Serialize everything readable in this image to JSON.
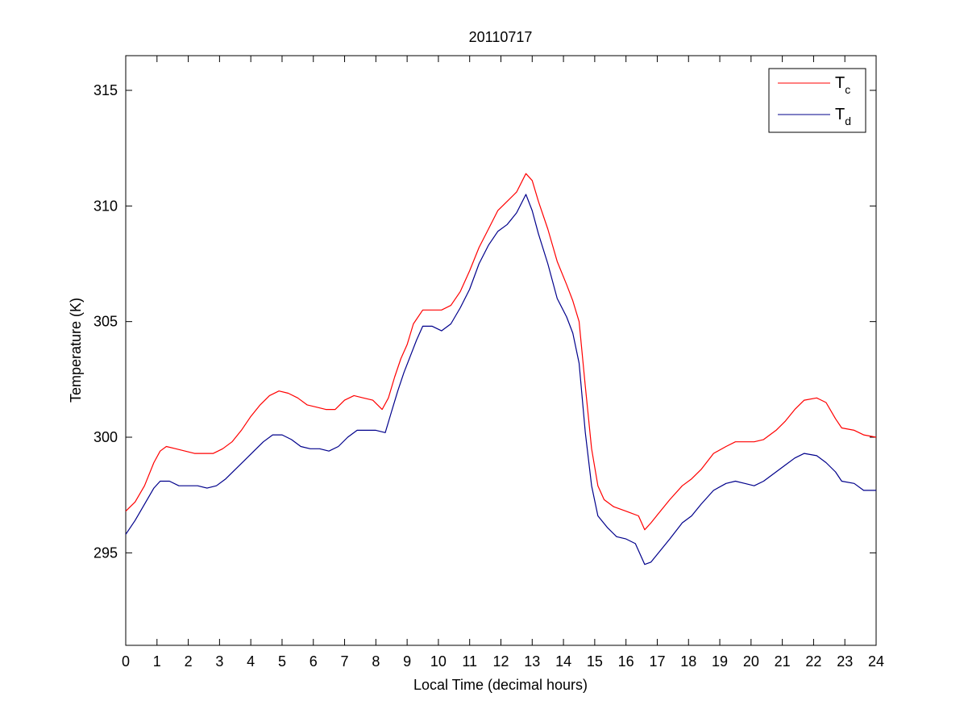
{
  "chart_data": {
    "type": "line",
    "title": "20110717",
    "xlabel": "Local Time (decimal hours)",
    "ylabel": "Temperature (K)",
    "xlim": [
      0,
      24
    ],
    "ylim": [
      291,
      316.5
    ],
    "xticks": [
      0,
      1,
      2,
      3,
      4,
      5,
      6,
      7,
      8,
      9,
      10,
      11,
      12,
      13,
      14,
      15,
      16,
      17,
      18,
      19,
      20,
      21,
      22,
      23,
      24
    ],
    "yticks": [
      295,
      300,
      305,
      310,
      315
    ],
    "grid": false,
    "legend_position": "top-right",
    "series": [
      {
        "name": "T",
        "subscript": "c",
        "color": "#ff0000",
        "points": [
          [
            0.0,
            296.8
          ],
          [
            0.3,
            297.2
          ],
          [
            0.6,
            297.9
          ],
          [
            0.9,
            298.9
          ],
          [
            1.1,
            299.4
          ],
          [
            1.3,
            299.6
          ],
          [
            1.6,
            299.5
          ],
          [
            1.9,
            299.4
          ],
          [
            2.2,
            299.3
          ],
          [
            2.5,
            299.3
          ],
          [
            2.8,
            299.3
          ],
          [
            3.1,
            299.5
          ],
          [
            3.4,
            299.8
          ],
          [
            3.7,
            300.3
          ],
          [
            4.0,
            300.9
          ],
          [
            4.3,
            301.4
          ],
          [
            4.6,
            301.8
          ],
          [
            4.9,
            302.0
          ],
          [
            5.2,
            301.9
          ],
          [
            5.5,
            301.7
          ],
          [
            5.8,
            301.4
          ],
          [
            6.1,
            301.3
          ],
          [
            6.4,
            301.2
          ],
          [
            6.7,
            301.2
          ],
          [
            7.0,
            301.6
          ],
          [
            7.3,
            301.8
          ],
          [
            7.6,
            301.7
          ],
          [
            7.9,
            301.6
          ],
          [
            8.2,
            301.2
          ],
          [
            8.4,
            301.7
          ],
          [
            8.6,
            302.6
          ],
          [
            8.8,
            303.4
          ],
          [
            9.0,
            304.0
          ],
          [
            9.2,
            304.9
          ],
          [
            9.5,
            305.5
          ],
          [
            9.8,
            305.5
          ],
          [
            10.1,
            305.5
          ],
          [
            10.4,
            305.7
          ],
          [
            10.7,
            306.3
          ],
          [
            11.0,
            307.2
          ],
          [
            11.3,
            308.2
          ],
          [
            11.6,
            309.0
          ],
          [
            11.9,
            309.8
          ],
          [
            12.2,
            310.2
          ],
          [
            12.5,
            310.6
          ],
          [
            12.8,
            311.4
          ],
          [
            13.0,
            311.1
          ],
          [
            13.2,
            310.2
          ],
          [
            13.5,
            309.0
          ],
          [
            13.8,
            307.6
          ],
          [
            14.1,
            306.6
          ],
          [
            14.3,
            305.9
          ],
          [
            14.5,
            305.0
          ],
          [
            14.7,
            302.2
          ],
          [
            14.9,
            299.5
          ],
          [
            15.1,
            297.9
          ],
          [
            15.3,
            297.3
          ],
          [
            15.6,
            297.0
          ],
          [
            16.0,
            296.8
          ],
          [
            16.4,
            296.6
          ],
          [
            16.6,
            296.0
          ],
          [
            16.8,
            296.3
          ],
          [
            17.1,
            296.8
          ],
          [
            17.4,
            297.3
          ],
          [
            17.8,
            297.9
          ],
          [
            18.1,
            298.2
          ],
          [
            18.4,
            298.6
          ],
          [
            18.8,
            299.3
          ],
          [
            19.2,
            299.6
          ],
          [
            19.5,
            299.8
          ],
          [
            19.8,
            299.8
          ],
          [
            20.1,
            299.8
          ],
          [
            20.4,
            299.9
          ],
          [
            20.8,
            300.3
          ],
          [
            21.1,
            300.7
          ],
          [
            21.4,
            301.2
          ],
          [
            21.7,
            301.6
          ],
          [
            22.1,
            301.7
          ],
          [
            22.4,
            301.5
          ],
          [
            22.7,
            300.8
          ],
          [
            22.9,
            300.4
          ],
          [
            23.3,
            300.3
          ],
          [
            23.6,
            300.1
          ],
          [
            24.0,
            300.0
          ]
        ]
      },
      {
        "name": "T",
        "subscript": "d",
        "color": "#00008b",
        "points": [
          [
            0.0,
            295.8
          ],
          [
            0.3,
            296.4
          ],
          [
            0.6,
            297.1
          ],
          [
            0.9,
            297.8
          ],
          [
            1.1,
            298.1
          ],
          [
            1.4,
            298.1
          ],
          [
            1.7,
            297.9
          ],
          [
            2.0,
            297.9
          ],
          [
            2.3,
            297.9
          ],
          [
            2.6,
            297.8
          ],
          [
            2.9,
            297.9
          ],
          [
            3.2,
            298.2
          ],
          [
            3.5,
            298.6
          ],
          [
            3.8,
            299.0
          ],
          [
            4.1,
            299.4
          ],
          [
            4.4,
            299.8
          ],
          [
            4.7,
            300.1
          ],
          [
            5.0,
            300.1
          ],
          [
            5.3,
            299.9
          ],
          [
            5.6,
            299.6
          ],
          [
            5.9,
            299.5
          ],
          [
            6.2,
            299.5
          ],
          [
            6.5,
            299.4
          ],
          [
            6.8,
            299.6
          ],
          [
            7.1,
            300.0
          ],
          [
            7.4,
            300.3
          ],
          [
            7.7,
            300.3
          ],
          [
            8.0,
            300.3
          ],
          [
            8.3,
            300.2
          ],
          [
            8.5,
            301.1
          ],
          [
            8.7,
            302.0
          ],
          [
            8.9,
            302.8
          ],
          [
            9.1,
            303.5
          ],
          [
            9.3,
            304.2
          ],
          [
            9.5,
            304.8
          ],
          [
            9.8,
            304.8
          ],
          [
            10.1,
            304.6
          ],
          [
            10.4,
            304.9
          ],
          [
            10.7,
            305.6
          ],
          [
            11.0,
            306.4
          ],
          [
            11.3,
            307.5
          ],
          [
            11.6,
            308.3
          ],
          [
            11.9,
            308.9
          ],
          [
            12.2,
            309.2
          ],
          [
            12.5,
            309.7
          ],
          [
            12.8,
            310.5
          ],
          [
            13.0,
            309.8
          ],
          [
            13.2,
            308.8
          ],
          [
            13.5,
            307.5
          ],
          [
            13.8,
            306.0
          ],
          [
            14.1,
            305.2
          ],
          [
            14.3,
            304.5
          ],
          [
            14.5,
            303.2
          ],
          [
            14.7,
            300.2
          ],
          [
            14.9,
            297.9
          ],
          [
            15.1,
            296.6
          ],
          [
            15.4,
            296.1
          ],
          [
            15.7,
            295.7
          ],
          [
            16.0,
            295.6
          ],
          [
            16.3,
            295.4
          ],
          [
            16.6,
            294.5
          ],
          [
            16.8,
            294.6
          ],
          [
            17.1,
            295.1
          ],
          [
            17.4,
            295.6
          ],
          [
            17.8,
            296.3
          ],
          [
            18.1,
            296.6
          ],
          [
            18.4,
            297.1
          ],
          [
            18.8,
            297.7
          ],
          [
            19.2,
            298.0
          ],
          [
            19.5,
            298.1
          ],
          [
            19.8,
            298.0
          ],
          [
            20.1,
            297.9
          ],
          [
            20.4,
            298.1
          ],
          [
            20.8,
            298.5
          ],
          [
            21.1,
            298.8
          ],
          [
            21.4,
            299.1
          ],
          [
            21.7,
            299.3
          ],
          [
            22.1,
            299.2
          ],
          [
            22.4,
            298.9
          ],
          [
            22.7,
            298.5
          ],
          [
            22.9,
            298.1
          ],
          [
            23.3,
            298.0
          ],
          [
            23.6,
            297.7
          ],
          [
            24.0,
            297.7
          ]
        ]
      }
    ]
  }
}
